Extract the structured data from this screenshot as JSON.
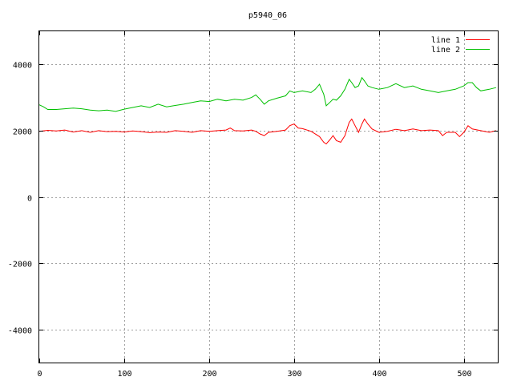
{
  "chart_data": {
    "type": "line",
    "title": "p5940_06",
    "xlabel": "",
    "ylabel": "",
    "xlim": [
      0,
      540
    ],
    "ylim": [
      -5000,
      5000
    ],
    "x_ticks": [
      0,
      100,
      200,
      300,
      400,
      500
    ],
    "y_ticks": [
      -4000,
      -2000,
      0,
      2000,
      4000
    ],
    "grid": true,
    "legend_position": "top-right",
    "series": [
      {
        "name": "line 1",
        "color": "#ff0000",
        "points": [
          [
            0,
            1980
          ],
          [
            10,
            2010
          ],
          [
            20,
            1990
          ],
          [
            30,
            2020
          ],
          [
            40,
            1960
          ],
          [
            50,
            2000
          ],
          [
            60,
            1950
          ],
          [
            70,
            2000
          ],
          [
            80,
            1970
          ],
          [
            90,
            1980
          ],
          [
            100,
            1960
          ],
          [
            110,
            1990
          ],
          [
            120,
            1970
          ],
          [
            130,
            1940
          ],
          [
            140,
            1960
          ],
          [
            150,
            1950
          ],
          [
            160,
            2000
          ],
          [
            170,
            1980
          ],
          [
            180,
            1950
          ],
          [
            190,
            2000
          ],
          [
            200,
            1980
          ],
          [
            210,
            2000
          ],
          [
            220,
            2020
          ],
          [
            225,
            2080
          ],
          [
            230,
            2000
          ],
          [
            240,
            1990
          ],
          [
            250,
            2020
          ],
          [
            255,
            1980
          ],
          [
            260,
            1900
          ],
          [
            265,
            1850
          ],
          [
            270,
            1950
          ],
          [
            280,
            1980
          ],
          [
            290,
            2020
          ],
          [
            295,
            2150
          ],
          [
            300,
            2200
          ],
          [
            305,
            2080
          ],
          [
            310,
            2060
          ],
          [
            320,
            1980
          ],
          [
            330,
            1820
          ],
          [
            335,
            1650
          ],
          [
            338,
            1600
          ],
          [
            342,
            1720
          ],
          [
            346,
            1850
          ],
          [
            350,
            1700
          ],
          [
            355,
            1650
          ],
          [
            360,
            1850
          ],
          [
            365,
            2250
          ],
          [
            368,
            2350
          ],
          [
            372,
            2150
          ],
          [
            376,
            1950
          ],
          [
            380,
            2200
          ],
          [
            383,
            2350
          ],
          [
            387,
            2200
          ],
          [
            392,
            2050
          ],
          [
            400,
            1950
          ],
          [
            410,
            1980
          ],
          [
            420,
            2040
          ],
          [
            430,
            2000
          ],
          [
            440,
            2050
          ],
          [
            450,
            2000
          ],
          [
            460,
            2020
          ],
          [
            470,
            2000
          ],
          [
            475,
            1850
          ],
          [
            480,
            1950
          ],
          [
            490,
            1950
          ],
          [
            495,
            1820
          ],
          [
            500,
            1950
          ],
          [
            505,
            2150
          ],
          [
            510,
            2050
          ],
          [
            520,
            2000
          ],
          [
            530,
            1950
          ],
          [
            538,
            2000
          ]
        ]
      },
      {
        "name": "line 2",
        "color": "#00c000",
        "points": [
          [
            0,
            2780
          ],
          [
            5,
            2720
          ],
          [
            10,
            2640
          ],
          [
            20,
            2640
          ],
          [
            30,
            2660
          ],
          [
            40,
            2680
          ],
          [
            50,
            2660
          ],
          [
            60,
            2620
          ],
          [
            70,
            2600
          ],
          [
            80,
            2620
          ],
          [
            90,
            2580
          ],
          [
            100,
            2650
          ],
          [
            110,
            2700
          ],
          [
            120,
            2750
          ],
          [
            130,
            2700
          ],
          [
            140,
            2800
          ],
          [
            150,
            2720
          ],
          [
            160,
            2760
          ],
          [
            170,
            2800
          ],
          [
            180,
            2850
          ],
          [
            190,
            2900
          ],
          [
            200,
            2880
          ],
          [
            210,
            2950
          ],
          [
            220,
            2900
          ],
          [
            230,
            2950
          ],
          [
            240,
            2920
          ],
          [
            250,
            3000
          ],
          [
            255,
            3080
          ],
          [
            260,
            2950
          ],
          [
            265,
            2800
          ],
          [
            270,
            2900
          ],
          [
            280,
            2980
          ],
          [
            290,
            3050
          ],
          [
            295,
            3200
          ],
          [
            300,
            3150
          ],
          [
            310,
            3200
          ],
          [
            320,
            3150
          ],
          [
            325,
            3250
          ],
          [
            330,
            3400
          ],
          [
            335,
            3100
          ],
          [
            338,
            2750
          ],
          [
            342,
            2850
          ],
          [
            346,
            2950
          ],
          [
            350,
            2920
          ],
          [
            355,
            3050
          ],
          [
            360,
            3250
          ],
          [
            365,
            3550
          ],
          [
            368,
            3450
          ],
          [
            372,
            3300
          ],
          [
            376,
            3350
          ],
          [
            380,
            3600
          ],
          [
            383,
            3500
          ],
          [
            387,
            3350
          ],
          [
            392,
            3300
          ],
          [
            400,
            3250
          ],
          [
            410,
            3300
          ],
          [
            420,
            3420
          ],
          [
            430,
            3300
          ],
          [
            440,
            3350
          ],
          [
            450,
            3250
          ],
          [
            460,
            3200
          ],
          [
            470,
            3150
          ],
          [
            480,
            3200
          ],
          [
            490,
            3250
          ],
          [
            500,
            3350
          ],
          [
            505,
            3450
          ],
          [
            510,
            3450
          ],
          [
            515,
            3300
          ],
          [
            520,
            3200
          ],
          [
            530,
            3250
          ],
          [
            538,
            3300
          ]
        ]
      }
    ]
  }
}
